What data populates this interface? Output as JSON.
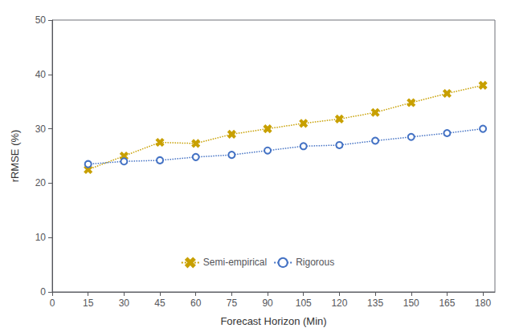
{
  "chart_data": {
    "type": "line",
    "xlabel": "Forecast Horizon (Min)",
    "ylabel": "rRMSE (%)",
    "x": [
      15,
      30,
      45,
      60,
      75,
      90,
      105,
      120,
      135,
      150,
      165,
      180
    ],
    "series": [
      {
        "name": "Semi-empirical",
        "color": "#C8A000",
        "marker": "x",
        "line_style": "dotted",
        "values": [
          22.5,
          25.0,
          27.5,
          27.3,
          29.0,
          30.0,
          31.0,
          31.8,
          33.0,
          34.8,
          36.5,
          38.0
        ]
      },
      {
        "name": "Rigorous",
        "color": "#4472C4",
        "marker": "circle",
        "line_style": "dotted",
        "values": [
          23.5,
          24.0,
          24.2,
          24.8,
          25.2,
          26.0,
          26.8,
          27.0,
          27.8,
          28.5,
          29.2,
          30.0
        ]
      }
    ],
    "xlim": [
      0,
      185
    ],
    "ylim": [
      0,
      50
    ],
    "xticks": [
      0,
      15,
      30,
      45,
      60,
      75,
      90,
      105,
      120,
      135,
      150,
      165,
      180
    ],
    "yticks": [
      0,
      10,
      20,
      30,
      40,
      50
    ],
    "grid": false,
    "legend": "bottom"
  }
}
